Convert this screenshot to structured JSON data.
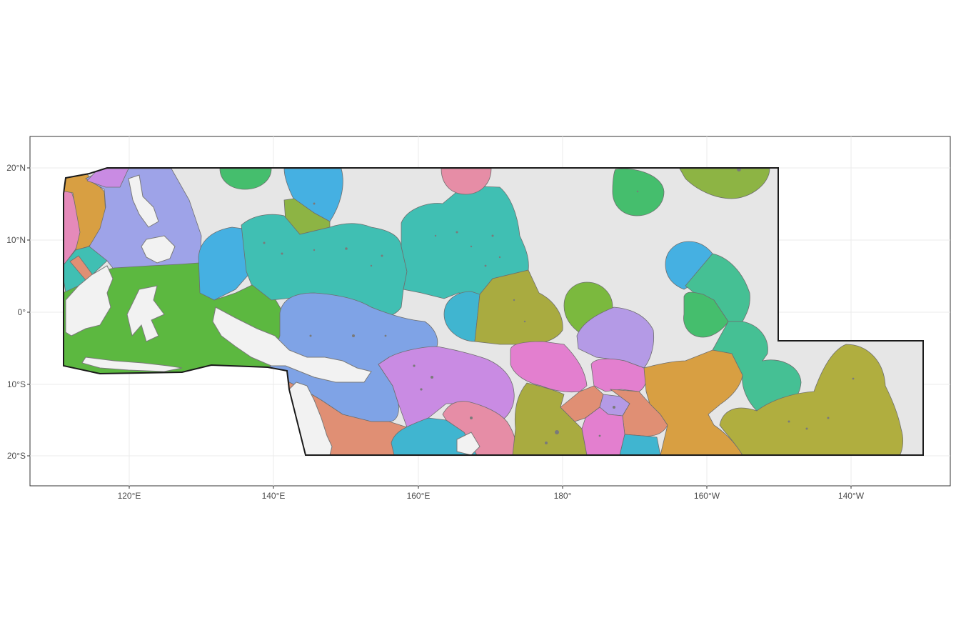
{
  "map": {
    "axes": {
      "x_ticks": [
        "120°E",
        "140°E",
        "160°E",
        "180°",
        "160°W",
        "140°W"
      ],
      "y_ticks": [
        "20°N",
        "10°N",
        "0°",
        "10°S",
        "20°S"
      ]
    },
    "extent": {
      "lon": [
        106.5,
        233.5
      ],
      "lat": [
        -24.3,
        24.2
      ]
    },
    "study_area_fill": "#e6e6e6",
    "border_color": "#1a1a1a",
    "land_fill": "#f2f2f2",
    "zone_colors": {
      "pink": "#e58aba",
      "orange": "#d89f42",
      "lavender": "#9ea3e8",
      "teal": "#40bfb3",
      "sky": "#45b0e2",
      "green": "#5cb840",
      "olive": "#a9ab40",
      "salmon": "#e08f74",
      "periwinkle": "#7fa3e6",
      "violet": "#c98be3",
      "magenta": "#e37fcf",
      "emerald": "#45be6d",
      "mint": "#45c094",
      "cyan": "#40b5d0",
      "lightviolet": "#b49ae6",
      "rose": "#e68da6",
      "moss": "#8db444",
      "lime": "#7bb93e",
      "gold": "#b0ae3f"
    }
  }
}
